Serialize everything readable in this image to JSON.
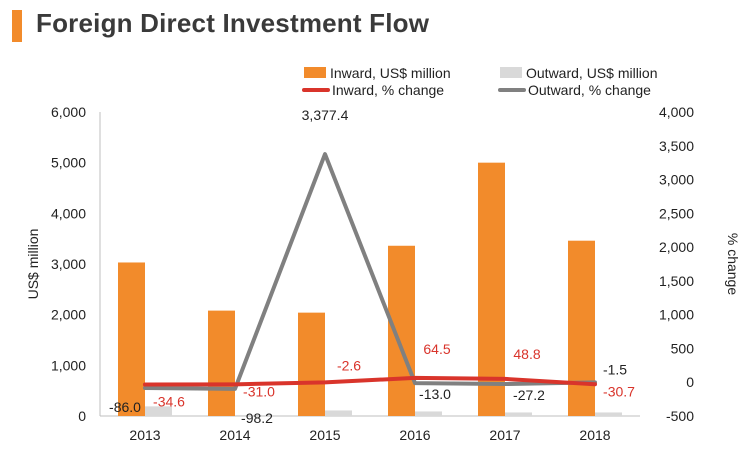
{
  "page": {
    "title": "Foreign Direct Investment Flow"
  },
  "chart_data": {
    "type": "bar",
    "categories": [
      "2013",
      "2014",
      "2015",
      "2016",
      "2017",
      "2018"
    ],
    "series": [
      {
        "name": "Inward, US$ million",
        "kind": "bar",
        "axis": "left",
        "color": "#f28b2b",
        "values": [
          3030,
          2080,
          2040,
          3360,
          5000,
          3460
        ]
      },
      {
        "name": "Outward, US$ million",
        "kind": "bar",
        "axis": "left",
        "color": "#d9d9d9",
        "values": [
          190,
          20,
          110,
          90,
          70,
          70
        ]
      },
      {
        "name": "Inward, % change",
        "kind": "line",
        "axis": "right",
        "color": "#d9342b",
        "values": [
          -34.6,
          -31.0,
          -2.6,
          64.5,
          48.8,
          -30.7
        ],
        "labels": [
          "-34.6",
          "-31.0",
          "-2.6",
          "64.5",
          "48.8",
          "-30.7"
        ]
      },
      {
        "name": "Outward, % change",
        "kind": "line",
        "axis": "right",
        "color": "#808080",
        "values": [
          -86.0,
          -98.2,
          3377.4,
          -13.0,
          -27.2,
          -1.5
        ],
        "labels": [
          "-86.0",
          "-98.2",
          "3,377.4",
          "-13.0",
          "-27.2",
          "-1.5"
        ]
      }
    ],
    "ylabel": "US$ million",
    "ylim": [
      0,
      6000
    ],
    "yticks": [
      "0",
      "1,000",
      "2,000",
      "3,000",
      "4,000",
      "5,000",
      "6,000"
    ],
    "y2label": "% change",
    "y2lim": [
      -500,
      4000
    ],
    "y2ticks": [
      "-500",
      "0",
      "500",
      "1,000",
      "1,500",
      "2,000",
      "2,500",
      "3,000",
      "3,500",
      "4,000"
    ],
    "grid": false,
    "legend": "top"
  }
}
